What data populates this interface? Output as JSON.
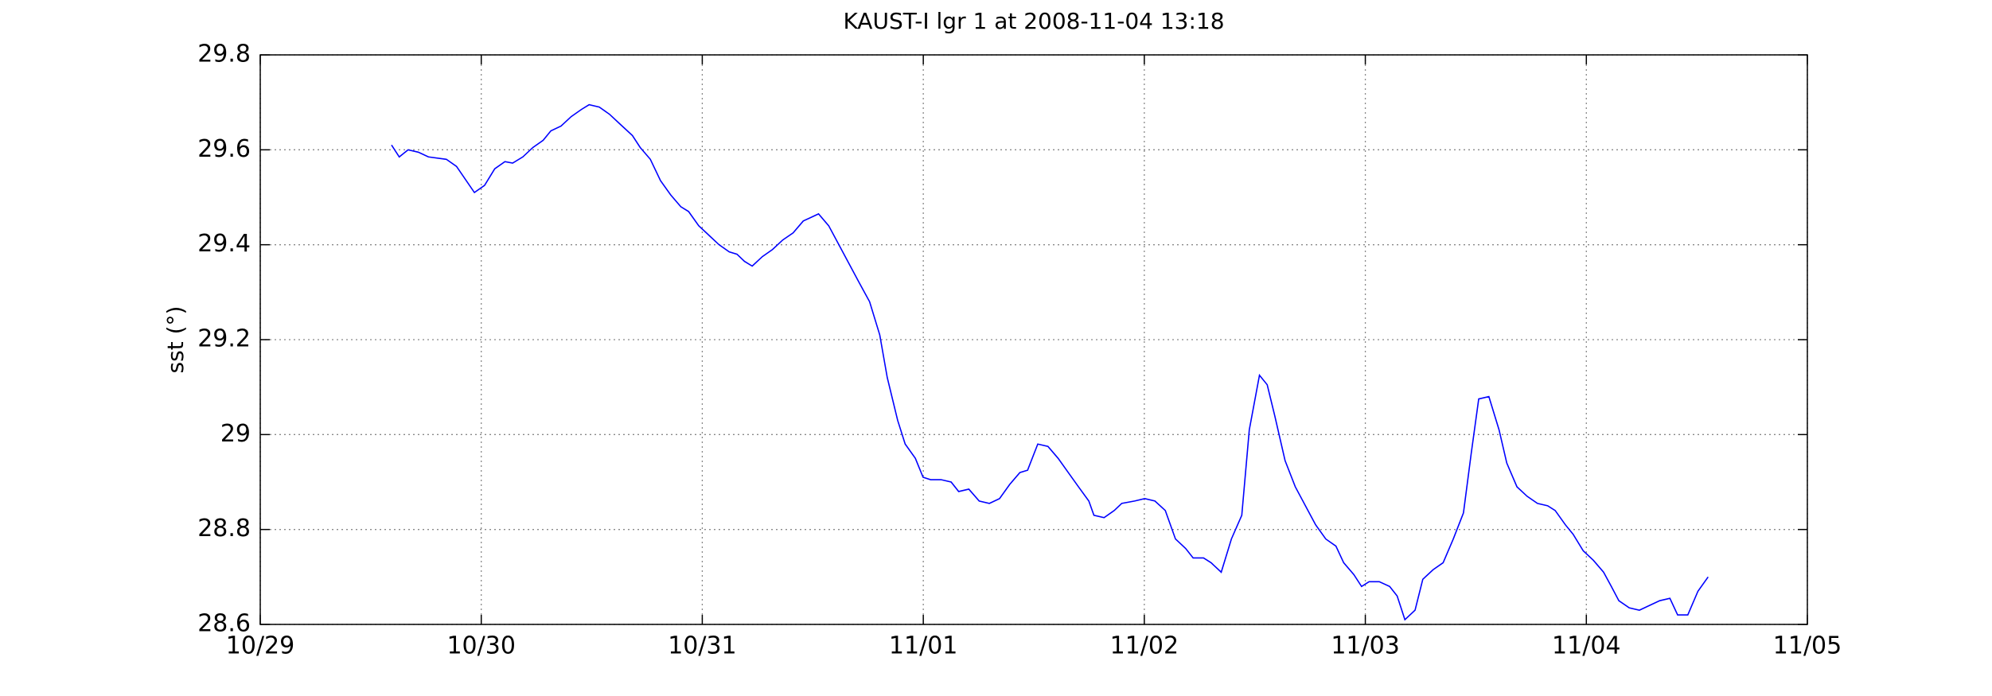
{
  "chart_data": {
    "type": "line",
    "title": "KAUST-I lgr 1 at 2008-11-04 13:18",
    "ylabel": "sst (°)",
    "grid": true,
    "xlim": [
      0,
      7
    ],
    "xticks": [
      {
        "value": 0,
        "label": "10/29"
      },
      {
        "value": 1,
        "label": "10/30"
      },
      {
        "value": 2,
        "label": "10/31"
      },
      {
        "value": 3,
        "label": "11/01"
      },
      {
        "value": 4,
        "label": "11/02"
      },
      {
        "value": 5,
        "label": "11/03"
      },
      {
        "value": 6,
        "label": "11/04"
      },
      {
        "value": 7,
        "label": "11/05"
      }
    ],
    "ylim": [
      28.6,
      29.8
    ],
    "yticks": [
      28.6,
      28.8,
      29,
      29.2,
      29.4,
      29.6,
      29.8
    ],
    "series": [
      {
        "color": "#0000ff",
        "x": [
          0.594,
          0.629,
          0.669,
          0.715,
          0.761,
          0.842,
          0.888,
          0.969,
          1.015,
          1.061,
          1.107,
          1.142,
          1.188,
          1.234,
          1.28,
          1.315,
          1.361,
          1.407,
          1.453,
          1.488,
          1.534,
          1.58,
          1.626,
          1.684,
          1.719,
          1.765,
          1.811,
          1.857,
          1.903,
          1.938,
          1.984,
          2.03,
          2.076,
          2.122,
          2.157,
          2.191,
          2.226,
          2.272,
          2.318,
          2.364,
          2.411,
          2.457,
          2.503,
          2.526,
          2.572,
          2.618,
          2.664,
          2.71,
          2.757,
          2.803,
          2.837,
          2.884,
          2.918,
          2.964,
          2.999,
          3.033,
          3.08,
          3.126,
          3.16,
          3.206,
          3.253,
          3.299,
          3.345,
          3.391,
          3.437,
          3.472,
          3.518,
          3.564,
          3.61,
          3.656,
          3.702,
          3.749,
          3.772,
          3.818,
          3.864,
          3.898,
          3.956,
          4.002,
          4.048,
          4.095,
          4.141,
          4.187,
          4.221,
          4.268,
          4.302,
          4.348,
          4.394,
          4.441,
          4.475,
          4.521,
          4.556,
          4.59,
          4.637,
          4.683,
          4.729,
          4.775,
          4.821,
          4.867,
          4.902,
          4.948,
          4.983,
          5.017,
          5.063,
          5.11,
          5.144,
          5.179,
          5.225,
          5.26,
          5.306,
          5.352,
          5.398,
          5.444,
          5.479,
          5.513,
          5.559,
          5.605,
          5.64,
          5.686,
          5.732,
          5.779,
          5.825,
          5.859,
          5.905,
          5.94,
          5.986,
          6.032,
          6.078,
          6.113,
          6.147,
          6.194,
          6.24,
          6.286,
          6.332,
          6.378,
          6.413,
          6.459,
          6.505,
          6.551
        ],
        "values": [
          29.61,
          29.585,
          29.6,
          29.595,
          29.585,
          29.58,
          29.565,
          29.51,
          29.525,
          29.56,
          29.575,
          29.572,
          29.585,
          29.605,
          29.62,
          29.64,
          29.65,
          29.67,
          29.685,
          29.695,
          29.69,
          29.675,
          29.655,
          29.63,
          29.605,
          29.58,
          29.535,
          29.505,
          29.48,
          29.47,
          29.44,
          29.42,
          29.4,
          29.385,
          29.38,
          29.365,
          29.355,
          29.375,
          29.39,
          29.41,
          29.425,
          29.45,
          29.46,
          29.465,
          29.44,
          29.4,
          29.36,
          29.32,
          29.28,
          29.21,
          29.12,
          29.03,
          28.98,
          28.95,
          28.91,
          28.905,
          28.905,
          28.9,
          28.88,
          28.885,
          28.86,
          28.855,
          28.865,
          28.895,
          28.92,
          28.925,
          28.98,
          28.975,
          28.95,
          28.92,
          28.89,
          28.86,
          28.83,
          28.825,
          28.84,
          28.855,
          28.86,
          28.865,
          28.86,
          28.84,
          28.78,
          28.76,
          28.74,
          28.74,
          28.73,
          28.71,
          28.78,
          28.83,
          29.01,
          29.125,
          29.105,
          29.04,
          28.945,
          28.89,
          28.85,
          28.81,
          28.78,
          28.765,
          28.73,
          28.705,
          28.68,
          28.69,
          28.69,
          28.68,
          28.66,
          28.61,
          28.63,
          28.695,
          28.715,
          28.73,
          28.78,
          28.835,
          28.96,
          29.075,
          29.08,
          29.01,
          28.94,
          28.89,
          28.87,
          28.855,
          28.85,
          28.84,
          28.81,
          28.79,
          28.755,
          28.735,
          28.71,
          28.68,
          28.65,
          28.635,
          28.63,
          28.64,
          28.65,
          28.655,
          28.62,
          28.62,
          28.67,
          28.7
        ]
      }
    ]
  }
}
